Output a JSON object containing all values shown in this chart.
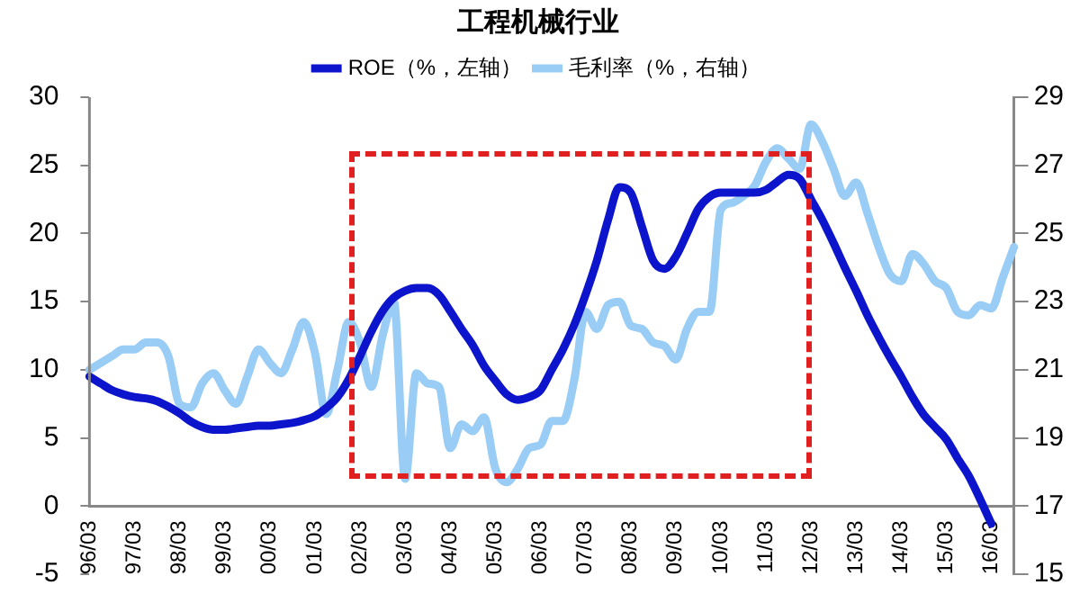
{
  "chart_data": {
    "type": "line",
    "title": "工程机械行业",
    "categories": [
      "96/03",
      null,
      null,
      null,
      "97/03",
      null,
      null,
      null,
      "98/03",
      null,
      null,
      null,
      "99/03",
      null,
      null,
      null,
      "00/03",
      null,
      null,
      null,
      "01/03",
      null,
      null,
      null,
      "02/03",
      null,
      null,
      null,
      "03/03",
      null,
      null,
      null,
      "04/03",
      null,
      null,
      null,
      "05/03",
      null,
      null,
      null,
      "06/03",
      null,
      null,
      null,
      "07/03",
      null,
      null,
      null,
      "08/03",
      null,
      null,
      null,
      "09/03",
      null,
      null,
      null,
      "10/03",
      null,
      null,
      null,
      "11/03",
      null,
      null,
      null,
      "12/03",
      null,
      null,
      null,
      "13/03",
      null,
      null,
      null,
      "14/03",
      null,
      null,
      null,
      "15/03",
      null,
      null,
      null,
      "16/03",
      null,
      null
    ],
    "series": [
      {
        "name": "ROE（%，左轴）",
        "color": "#0c14cc",
        "values": [
          9.5,
          9.0,
          8.5,
          8.2,
          8.0,
          7.9,
          7.7,
          7.3,
          6.8,
          6.2,
          5.8,
          5.6,
          5.6,
          5.7,
          5.8,
          5.9,
          5.9,
          6.0,
          6.1,
          6.3,
          6.6,
          7.2,
          8.0,
          9.3,
          11.0,
          12.8,
          14.3,
          15.3,
          15.8,
          16.0,
          16.0,
          15.5,
          14.3,
          13.0,
          11.8,
          10.3,
          9.2,
          8.2,
          7.8,
          8.0,
          8.5,
          10.0,
          11.5,
          13.3,
          15.5,
          18.0,
          21.0,
          23.4,
          23.0,
          20.5,
          18.0,
          17.4,
          18.3,
          20.0,
          21.8,
          22.7,
          23.0,
          23.0,
          23.0,
          23.0,
          23.2,
          23.8,
          24.3,
          24.0,
          22.5,
          21.0,
          19.3,
          17.5,
          15.8,
          14.0,
          12.4,
          10.9,
          9.5,
          8.0,
          6.7,
          5.8,
          4.9,
          3.5,
          2.2,
          0.5,
          -1.3,
          null,
          null
        ]
      },
      {
        "name": "毛利率（%，右轴）",
        "color": "#99cdf5",
        "axis": "y2",
        "values": [
          21.0,
          21.2,
          21.4,
          21.6,
          21.6,
          21.8,
          21.8,
          21.4,
          20.0,
          19.9,
          20.6,
          20.9,
          20.4,
          20.0,
          20.8,
          21.6,
          21.2,
          20.9,
          21.6,
          22.4,
          21.5,
          19.7,
          21.0,
          22.4,
          21.8,
          20.5,
          22.0,
          23.0,
          17.8,
          20.9,
          20.6,
          20.5,
          18.7,
          19.4,
          19.2,
          19.6,
          18.1,
          17.7,
          18.1,
          18.7,
          18.8,
          19.5,
          19.5,
          20.7,
          22.7,
          22.2,
          22.9,
          23.0,
          22.3,
          22.2,
          21.8,
          21.7,
          21.3,
          22.2,
          22.7,
          22.7,
          25.7,
          25.9,
          26.1,
          26.4,
          27.1,
          27.5,
          27.2,
          26.9,
          28.2,
          27.7,
          26.9,
          26.1,
          26.5,
          25.6,
          24.6,
          23.8,
          23.6,
          24.4,
          24.1,
          23.6,
          23.4,
          22.7,
          22.6,
          22.9,
          22.8,
          23.7,
          24.6
        ]
      }
    ],
    "ylim": [
      -5,
      30
    ],
    "yticks": [
      -5,
      0,
      5,
      10,
      15,
      20,
      25,
      30
    ],
    "y2lim": [
      15,
      29
    ],
    "y2ticks": [
      15,
      17,
      19,
      21,
      23,
      25,
      27,
      29
    ],
    "grid": false,
    "legend": "top",
    "marker": "none",
    "line_style": "solid"
  }
}
